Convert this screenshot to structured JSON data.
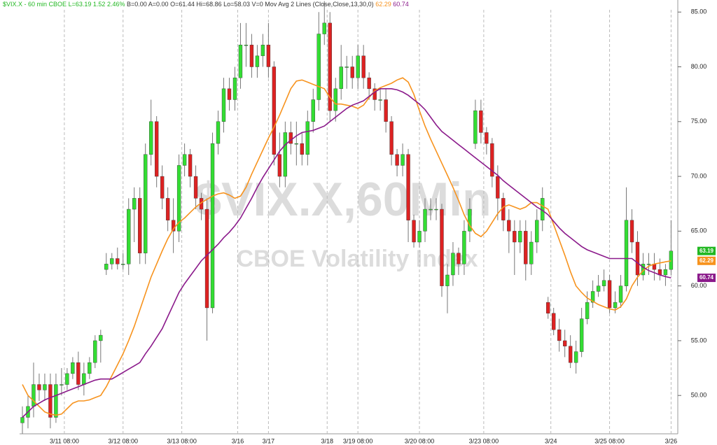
{
  "header": {
    "symbol": "$VIX.X - 60 min",
    "exchange": "CBOE",
    "last_label": "L=",
    "change": 1.52,
    "change_pct": "2.46%",
    "bid": "B=0.00",
    "ask": "A=0.00",
    "open": "O=61.44",
    "high": "Hi=68.86",
    "low": "Lo=58.03",
    "volume": "V=0",
    "study": "Mov Avg 2 Lines (Close,Close,13,30,0)"
  },
  "watermark": {
    "symbol": "$VIX.X,60Min",
    "name": "CBOE Volatility Index"
  },
  "chart_data": {
    "type": "candlestick",
    "up_color": "#33dd33",
    "down_color": "#dd2222",
    "wick_color": "#777777",
    "xlim": [
      -0.5,
      117.2
    ],
    "ylim": [
      46.5,
      86.1
    ],
    "yticks": [
      {
        "value": 50,
        "label": "50.00"
      },
      {
        "value": 55,
        "label": "55.00"
      },
      {
        "value": 60,
        "label": "60.00"
      },
      {
        "value": 65,
        "label": "65.00"
      },
      {
        "value": 70,
        "label": "70.00"
      },
      {
        "value": 75,
        "label": "75.00"
      },
      {
        "value": 80,
        "label": "80.00"
      },
      {
        "value": 85,
        "label": "85.00"
      }
    ],
    "xticks": [
      {
        "value": 7.5,
        "label": "3/11 08:00"
      },
      {
        "value": 18,
        "label": "3/12 08:00"
      },
      {
        "value": 28.5,
        "label": "3/13 08:00"
      },
      {
        "value": 38.5,
        "label": "3/16"
      },
      {
        "value": 44,
        "label": "3/17"
      },
      {
        "value": 54.5,
        "label": "3/18"
      },
      {
        "value": 60,
        "label": "3/19 08:00"
      },
      {
        "value": 71,
        "label": "3/20 08:00"
      },
      {
        "value": 82.5,
        "label": "3/23 08:00"
      },
      {
        "value": 94.5,
        "label": "3/24"
      },
      {
        "value": 105,
        "label": "3/25 08:00"
      },
      {
        "value": 116,
        "label": "3/26"
      }
    ],
    "grid": true,
    "open": [
      47.5,
      48,
      49,
      51,
      50.5,
      51,
      48,
      51,
      51,
      52,
      53,
      51,
      52,
      53,
      55,
      61.5,
      62,
      62.5,
      62,
      62,
      67,
      68,
      63,
      72,
      75,
      70,
      68,
      66,
      65,
      71,
      72,
      70,
      68,
      67,
      58,
      73,
      75,
      78,
      77,
      79,
      82,
      82,
      80,
      81,
      82,
      80,
      72,
      70,
      74,
      73,
      73,
      72,
      75,
      77,
      83,
      84,
      76,
      78,
      80,
      80,
      79,
      81,
      79,
      78,
      77,
      77,
      75,
      72,
      71,
      72,
      66,
      64,
      65,
      67,
      67,
      67,
      60,
      61,
      63,
      62,
      65,
      73,
      76,
      74,
      73,
      70,
      68,
      66,
      65,
      64,
      65,
      62,
      64,
      66,
      58.5,
      57.5,
      56,
      55,
      54.5,
      53,
      54,
      57,
      58.5,
      59.5,
      60,
      60.5,
      58,
      58.5,
      60,
      66,
      64,
      61,
      62,
      62,
      61.5,
      61,
      61.5
    ],
    "high": [
      49,
      50,
      53,
      52,
      52,
      52,
      52,
      52.5,
      52.5,
      53.5,
      54,
      53,
      53.5,
      55.5,
      56,
      63,
      63,
      63.5,
      63,
      68,
      69,
      69,
      73,
      77,
      75.5,
      71,
      69,
      68,
      72,
      73,
      72.5,
      71,
      68.5,
      68,
      74,
      76,
      79,
      79,
      80,
      84,
      84,
      83,
      82,
      83,
      84,
      80.5,
      74,
      75,
      75,
      75,
      74,
      76,
      78,
      85,
      86,
      85,
      79,
      82,
      81,
      81,
      82,
      82,
      79.5,
      78.5,
      78,
      78,
      75.5,
      72.5,
      73,
      72.5,
      66.5,
      66,
      68,
      68,
      68,
      67.5,
      62,
      64,
      63.5,
      66,
      68,
      77,
      77,
      74.5,
      73.5,
      71,
      68.5,
      67,
      66,
      66,
      66,
      65,
      67,
      69,
      59,
      58,
      57,
      56,
      55.5,
      55,
      58,
      59.5,
      60.5,
      61,
      61.5,
      61,
      59.5,
      61,
      69,
      67,
      65,
      63,
      63,
      63,
      62.5,
      62,
      66
    ],
    "low": [
      46.5,
      47,
      48,
      49.5,
      49.5,
      47,
      47.5,
      50,
      50.5,
      51.5,
      50.5,
      50,
      51.5,
      52.5,
      53,
      61,
      61.5,
      61.5,
      61.5,
      61,
      64,
      62,
      62,
      71,
      69,
      67,
      65,
      63,
      64,
      70,
      69,
      67,
      66,
      55,
      57.5,
      72,
      74,
      76,
      76,
      78,
      80,
      79,
      79,
      80,
      79,
      71,
      69,
      69,
      72,
      71,
      71,
      71,
      74,
      76,
      82,
      75,
      75,
      77,
      78,
      78,
      78,
      78,
      77,
      76,
      76,
      74,
      71,
      70,
      70,
      64,
      63.5,
      63.5,
      64,
      66,
      66,
      59,
      57.5,
      60,
      61,
      61,
      64,
      72.5,
      73,
      72,
      69,
      66,
      65,
      63,
      61,
      63,
      60.5,
      61,
      63,
      65,
      57,
      55.5,
      54,
      53.5,
      52.5,
      52,
      53.5,
      56.5,
      58,
      59,
      59.5,
      57.5,
      57.5,
      58,
      59.5,
      63,
      60,
      60.5,
      61,
      60.5,
      60.5,
      60,
      61
    ],
    "close": [
      48,
      49,
      51,
      50.5,
      51,
      48,
      51,
      51,
      52,
      53,
      51,
      52,
      53,
      55,
      55.5,
      62,
      62.5,
      62,
      62,
      67,
      68,
      63,
      72,
      75,
      70,
      68,
      66,
      65,
      71,
      72,
      70,
      68,
      67,
      58,
      73,
      75,
      78,
      77,
      79,
      82,
      82,
      80,
      81,
      82,
      80,
      72,
      70,
      74,
      73,
      73,
      72,
      75,
      77,
      83,
      84,
      76,
      78,
      80,
      80,
      79,
      81,
      79,
      78,
      77,
      77,
      75,
      72,
      71,
      72,
      66,
      64,
      65,
      67,
      67,
      67,
      60,
      61,
      63,
      62,
      65,
      67,
      76,
      74,
      73,
      70,
      68,
      66,
      65,
      64,
      65,
      62,
      64,
      66,
      68,
      57.5,
      56,
      55,
      54.5,
      53,
      54,
      57,
      58.5,
      59.5,
      60,
      60.5,
      58,
      58.5,
      60,
      66,
      64,
      61,
      62,
      62,
      61.5,
      61,
      61.5,
      63.19
    ],
    "series": [
      {
        "color": "#f7931e",
        "values": [
          51,
          50,
          49.5,
          49,
          48.5,
          48.3,
          48.2,
          48.3,
          48.8,
          49.3,
          49.5,
          49.5,
          49.6,
          49.8,
          50,
          50.8,
          51.8,
          52.8,
          53.8,
          55,
          56.3,
          57.8,
          59.3,
          60.8,
          62,
          63.2,
          64.3,
          65.2,
          65.8,
          66.2,
          66.7,
          67.2,
          67.6,
          67.9,
          68.2,
          68.4,
          68.5,
          68.3,
          68,
          68.2,
          69,
          70.2,
          71.3,
          72.4,
          73.5,
          74.5,
          75.6,
          76.8,
          78,
          78.7,
          78.8,
          78.6,
          78.4,
          78.2,
          78,
          77.2,
          76.6,
          76.6,
          76.5,
          76.4,
          76.2,
          76.5,
          77.2,
          77.8,
          78.1,
          78.3,
          78.5,
          78.8,
          79,
          78.6,
          77.5,
          76,
          74.6,
          73.4,
          72.3,
          71.2,
          70.1,
          69,
          67.8,
          66.5,
          65.5,
          64.8,
          64.5,
          65,
          65.8,
          66.6,
          67.2,
          67.4,
          67.2,
          67,
          67.2,
          67.6,
          67.6,
          67.3,
          67,
          65.6,
          64.2,
          62.8,
          61.3,
          60,
          59.4,
          58.9,
          58.6,
          58.3,
          58.1,
          57.9,
          57.8,
          58.1,
          58.8,
          60,
          60.8,
          61.4,
          61.8,
          62,
          62.1,
          62.2,
          62.29
        ]
      },
      {
        "color": "#8b1a8b",
        "values": [
          48,
          48.5,
          49,
          49.3,
          49.6,
          49.8,
          50,
          50.2,
          50.4,
          50.6,
          50.8,
          51,
          51.2,
          51.4,
          51.5,
          51.5,
          51.5,
          51.8,
          52.1,
          52.4,
          52.7,
          53,
          53.8,
          54.5,
          55.3,
          56.1,
          57.2,
          58.3,
          59.4,
          60.2,
          60.9,
          61.6,
          62.3,
          62.8,
          63.3,
          63.8,
          64.4,
          64.9,
          65.5,
          66.2,
          67.1,
          68,
          69,
          69.9,
          70.7,
          71.5,
          72.3,
          72.9,
          73.3,
          73.7,
          74,
          74.1,
          74.2,
          74.4,
          74.6,
          75,
          75.4,
          75.8,
          76.2,
          76.5,
          76.7,
          76.9,
          77.3,
          77.7,
          78,
          78,
          78,
          77.9,
          77.7,
          77.4,
          77,
          76.6,
          76.1,
          75.4,
          74.7,
          74.1,
          73.7,
          73.3,
          72.9,
          72.5,
          72.1,
          71.7,
          71.3,
          70.9,
          70.5,
          70.1,
          69.6,
          69.2,
          68.8,
          68.4,
          68,
          67.6,
          67.2,
          66.9,
          66.5,
          65.9,
          65.3,
          64.8,
          64.4,
          64,
          63.6,
          63.3,
          63.1,
          62.9,
          62.7,
          62.5,
          62.5,
          62.5,
          62.5,
          62.5,
          62.1,
          61.7,
          61.4,
          61.2,
          61,
          60.85,
          60.74
        ]
      }
    ]
  }
}
